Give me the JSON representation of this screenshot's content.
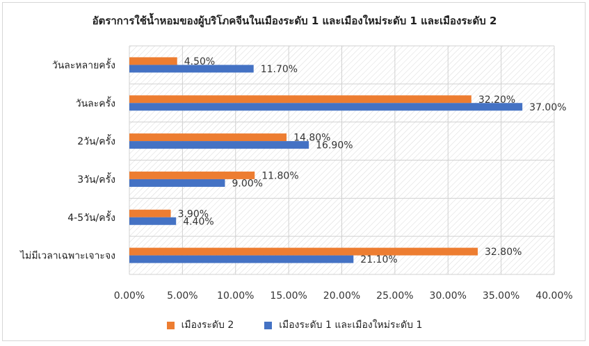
{
  "chart_data": {
    "type": "bar",
    "orientation": "horizontal",
    "title": "อัตราการใช้น้ำหอมของผู้บริโภคจีนในเมืองระดับ 1 และเมืองใหม่ระดับ 1 และเมืองระดับ 2",
    "categories": [
      "วันละหลายครั้ง",
      "วันละครั้ง",
      "2วัน/ครั้ง",
      "3วัน/ครั้ง",
      "4-5วัน/ครั้ง",
      "ไม่มีเวลาเฉพาะเจาะจง"
    ],
    "series": [
      {
        "name": "เมืองระดับ 2",
        "color": "#ED7D31",
        "values": [
          4.5,
          32.2,
          14.8,
          11.8,
          3.9,
          32.8
        ],
        "labels": [
          "4.50%",
          "32.20%",
          "14.80%",
          "11.80%",
          "3.90%",
          "32.80%"
        ]
      },
      {
        "name": "เมืองระดับ 1 และเมืองใหม่ระดับ 1",
        "color": "#4472C4",
        "values": [
          11.7,
          37.0,
          16.9,
          9.0,
          4.4,
          21.1
        ],
        "labels": [
          "11.70%",
          "37.00%",
          "16.90%",
          "9.00%",
          "4.40%",
          "21.10%"
        ]
      }
    ],
    "xlim": [
      0,
      40
    ],
    "xticks": [
      "0.00%",
      "5.00%",
      "10.00%",
      "15.00%",
      "20.00%",
      "25.00%",
      "30.00%",
      "35.00%",
      "40.00%"
    ],
    "grid": true,
    "legend_position": "bottom"
  }
}
